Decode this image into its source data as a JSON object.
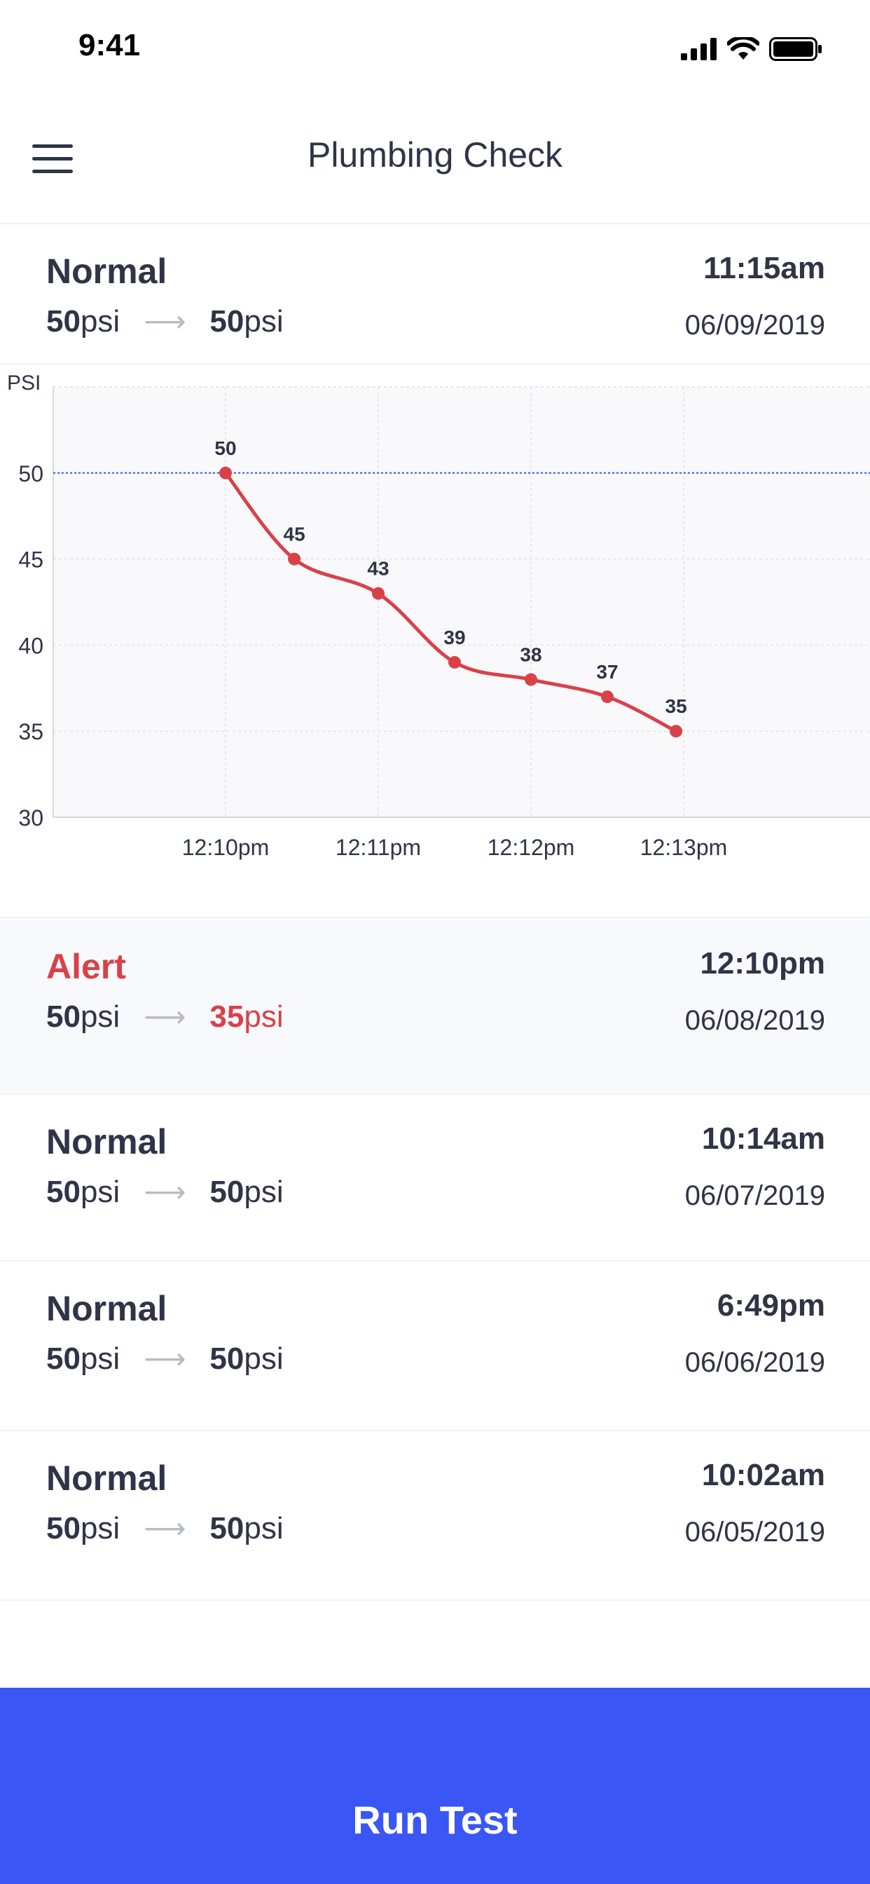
{
  "status_bar": {
    "time": "9:41"
  },
  "header": {
    "title": "Plumbing Check",
    "menu_icon": "hamburger-menu-icon"
  },
  "entries": [
    {
      "status": "Normal",
      "time": "11:15am",
      "start": "50",
      "end": "50",
      "unit": "psi",
      "date": "06/09/2019",
      "alert": false
    },
    {
      "status": "Alert",
      "time": "12:10pm",
      "start": "50",
      "end": "35",
      "unit": "psi",
      "date": "06/08/2019",
      "alert": true
    },
    {
      "status": "Normal",
      "time": "10:14am",
      "start": "50",
      "end": "50",
      "unit": "psi",
      "date": "06/07/2019",
      "alert": false
    },
    {
      "status": "Normal",
      "time": "6:49pm",
      "start": "50",
      "end": "50",
      "unit": "psi",
      "date": "06/06/2019",
      "alert": false
    },
    {
      "status": "Normal",
      "time": "10:02am",
      "start": "50",
      "end": "50",
      "unit": "psi",
      "date": "06/05/2019",
      "alert": false
    }
  ],
  "chart_data": {
    "type": "line",
    "ylabel": "PSI",
    "ylim": [
      30,
      55
    ],
    "yticks": [
      "30",
      "35",
      "40",
      "45",
      "50"
    ],
    "xticks": [
      {
        "label": "12:10pm",
        "x": 0
      },
      {
        "label": "12:11pm",
        "x": 1
      },
      {
        "label": "12:12pm",
        "x": 2
      },
      {
        "label": "12:13pm",
        "x": 3
      }
    ],
    "reference_line": 50,
    "series": [
      {
        "color": "#d94149",
        "x": [
          0,
          0.45,
          1,
          1.5,
          2,
          2.5,
          2.95
        ],
        "values": [
          50,
          45,
          43,
          39,
          38,
          37,
          35
        ],
        "labels": [
          "50",
          "45",
          "43",
          "39",
          "38",
          "37",
          "35"
        ]
      }
    ],
    "grid": true,
    "reference_color": "#3a56f5"
  },
  "actions": {
    "run_test": "Run Test"
  },
  "colors": {
    "accent": "#3a56f5",
    "alert": "#d94149",
    "text": "#2f3447"
  }
}
